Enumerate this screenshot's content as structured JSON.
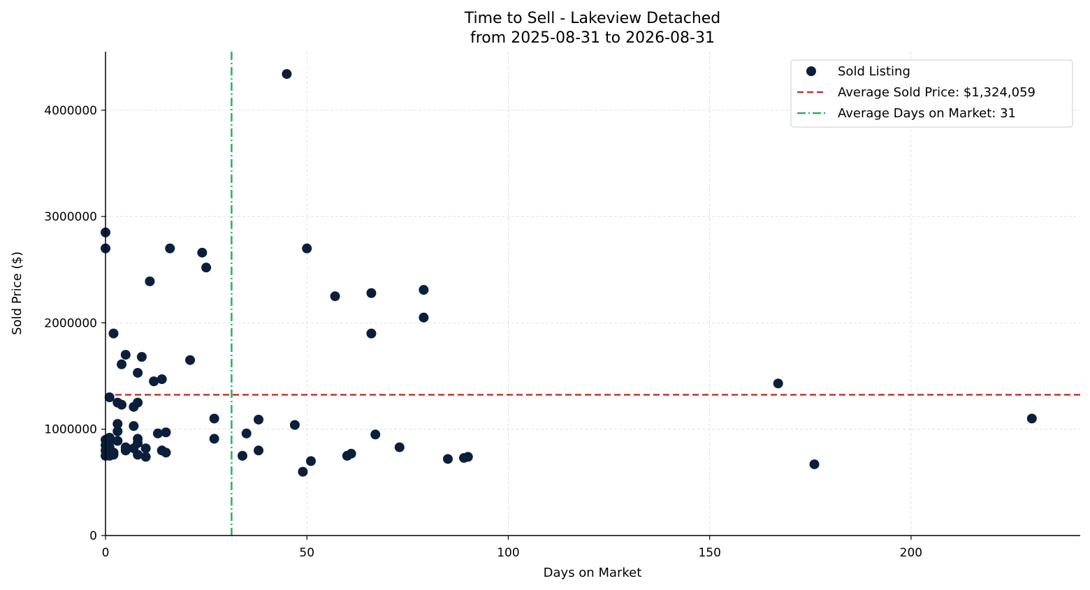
{
  "chart_data": {
    "type": "scatter",
    "title": "Time to Sell - Lakeview Detached",
    "subtitle": "from 2025-08-31 to 2026-08-31",
    "xlabel": "Days on Market",
    "ylabel": "Sold Price ($)",
    "xlim": [
      0,
      242
    ],
    "ylim": [
      0,
      4550000
    ],
    "x_ticks": [
      0,
      50,
      100,
      150,
      200
    ],
    "y_ticks": [
      0,
      1000000,
      2000000,
      3000000,
      4000000
    ],
    "x_tick_labels": [
      "0",
      "50",
      "100",
      "150",
      "200"
    ],
    "y_tick_labels": [
      "0",
      "1000000",
      "2000000",
      "3000000",
      "4000000"
    ],
    "grid": true,
    "legend_position": "top-right",
    "colors": {
      "points": "#0b1f3a",
      "avg_price_line": "#c0392b",
      "avg_days_line": "#27ae60",
      "grid": "#d9d9d9",
      "axis": "#000000"
    },
    "series": [
      {
        "name": "Sold Listing",
        "points": [
          [
            0,
            2850000
          ],
          [
            0,
            2700000
          ],
          [
            0,
            900000
          ],
          [
            0,
            850000
          ],
          [
            0,
            800000
          ],
          [
            0,
            750000
          ],
          [
            1,
            1300000
          ],
          [
            1,
            920000
          ],
          [
            1,
            880000
          ],
          [
            1,
            830000
          ],
          [
            1,
            780000
          ],
          [
            1,
            750000
          ],
          [
            2,
            1900000
          ],
          [
            2,
            780000
          ],
          [
            2,
            760000
          ],
          [
            3,
            1250000
          ],
          [
            3,
            1050000
          ],
          [
            3,
            980000
          ],
          [
            3,
            890000
          ],
          [
            4,
            1610000
          ],
          [
            4,
            1230000
          ],
          [
            5,
            1700000
          ],
          [
            5,
            830000
          ],
          [
            5,
            800000
          ],
          [
            7,
            1210000
          ],
          [
            7,
            1030000
          ],
          [
            7,
            820000
          ],
          [
            8,
            1530000
          ],
          [
            8,
            1250000
          ],
          [
            8,
            910000
          ],
          [
            8,
            870000
          ],
          [
            8,
            760000
          ],
          [
            9,
            1680000
          ],
          [
            10,
            820000
          ],
          [
            10,
            740000
          ],
          [
            11,
            2390000
          ],
          [
            12,
            1450000
          ],
          [
            13,
            960000
          ],
          [
            14,
            1470000
          ],
          [
            14,
            800000
          ],
          [
            15,
            970000
          ],
          [
            15,
            780000
          ],
          [
            16,
            2700000
          ],
          [
            21,
            1650000
          ],
          [
            24,
            2660000
          ],
          [
            25,
            2520000
          ],
          [
            27,
            1100000
          ],
          [
            27,
            910000
          ],
          [
            34,
            750000
          ],
          [
            35,
            960000
          ],
          [
            38,
            1090000
          ],
          [
            38,
            800000
          ],
          [
            45,
            4340000
          ],
          [
            47,
            1040000
          ],
          [
            49,
            600000
          ],
          [
            50,
            2700000
          ],
          [
            51,
            700000
          ],
          [
            57,
            2250000
          ],
          [
            60,
            750000
          ],
          [
            61,
            770000
          ],
          [
            66,
            2280000
          ],
          [
            66,
            1900000
          ],
          [
            67,
            950000
          ],
          [
            73,
            830000
          ],
          [
            79,
            2310000
          ],
          [
            79,
            2050000
          ],
          [
            85,
            720000
          ],
          [
            89,
            730000
          ],
          [
            90,
            740000
          ],
          [
            167,
            1430000
          ],
          [
            176,
            670000
          ],
          [
            230,
            1100000
          ]
        ]
      }
    ],
    "reference_lines": [
      {
        "name": "Average Sold Price: $1,324,059",
        "orientation": "horizontal",
        "value": 1324059,
        "style": "dashed"
      },
      {
        "name": "Average Days on Market: 31",
        "orientation": "vertical",
        "value": 31.3,
        "style": "dashdot"
      }
    ]
  }
}
